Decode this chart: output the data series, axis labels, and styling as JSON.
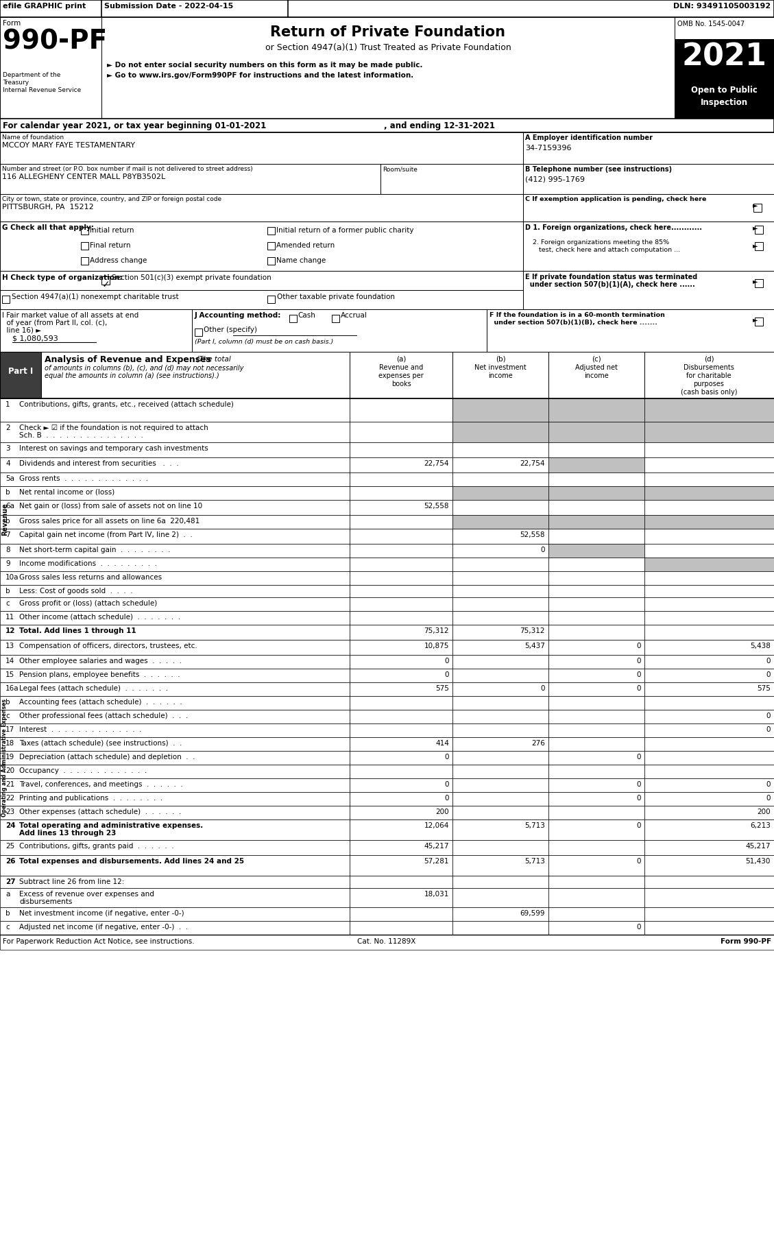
{
  "header_bar": {
    "efile": "efile GRAPHIC print",
    "submission": "Submission Date - 2022-04-15",
    "dln": "DLN: 93491105003192"
  },
  "form_number": "990-PF",
  "form_label": "Form",
  "dept1": "Department of the",
  "dept2": "Treasury",
  "dept3": "Internal Revenue Service",
  "title": "Return of Private Foundation",
  "subtitle": "or Section 4947(a)(1) Trust Treated as Private Foundation",
  "bullet1": "► Do not enter social security numbers on this form as it may be made public.",
  "bullet2": "► Go to www.irs.gov/Form990PF for instructions and the latest information.",
  "year": "2021",
  "open_public": "Open to Public",
  "inspection": "Inspection",
  "omb": "OMB No. 1545-0047",
  "cal_year": "For calendar year 2021, or tax year beginning 01-01-2021",
  "and_ending": ", and ending 12-31-2021",
  "name_label": "Name of foundation",
  "name_value": "MCCOY MARY FAYE TESTAMENTARY",
  "ein_label": "A Employer identification number",
  "ein_value": "34-7159396",
  "address_label": "Number and street (or P.O. box number if mail is not delivered to street address)",
  "address_value": "116 ALLEGHENY CENTER MALL P8YB3502L",
  "room_label": "Room/suite",
  "phone_label": "B Telephone number (see instructions)",
  "phone_value": "(412) 995-1769",
  "city_label": "City or town, state or province, country, and ZIP or foreign postal code",
  "city_value": "PITTSBURGH, PA  15212",
  "c_label": "C If exemption application is pending, check here",
  "g_options": [
    [
      "Initial return",
      "Initial return of a former public charity"
    ],
    [
      "Final return",
      "Amended return"
    ],
    [
      "Address change",
      "Name change"
    ]
  ],
  "i_value": "$ 1,080,593",
  "col_a": "Revenue and\nexpenses per\nbooks",
  "col_b": "Net investment\nincome",
  "col_c": "Adjusted net\nincome",
  "col_d": "Disbursements\nfor charitable\npurposes\n(cash basis only)",
  "rows": [
    {
      "num": "1",
      "label": "Contributions, gifts, grants, etc., received (attach schedule)",
      "a": "",
      "b": "",
      "c": "",
      "d": "",
      "shade_b": true,
      "shade_c": true,
      "shade_d": true,
      "rh": 34
    },
    {
      "num": "2",
      "label": "Check ► ☑ if the foundation is not required to attach\nSch. B  .  .  .  .  .  .  .  .  .  .  .  .  .  .  .",
      "a": "",
      "b": "",
      "c": "",
      "d": "",
      "shade_b": true,
      "shade_c": true,
      "shade_d": true,
      "rh": 30
    },
    {
      "num": "3",
      "label": "Interest on savings and temporary cash investments",
      "a": "",
      "b": "",
      "c": "",
      "d": "",
      "rh": 22
    },
    {
      "num": "4",
      "label": "Dividends and interest from securities   .  .  .",
      "a": "22,754",
      "b": "22,754",
      "c": "",
      "d": "",
      "shade_c": true,
      "rh": 22
    },
    {
      "num": "5a",
      "label": "Gross rents  .  .  .  .  .  .  .  .  .  .  .  .  .",
      "a": "",
      "b": "",
      "c": "",
      "d": "",
      "rh": 20
    },
    {
      "num": "b",
      "label": "Net rental income or (loss)",
      "a": "",
      "b": "",
      "c": "",
      "d": "",
      "shade_b": true,
      "shade_c": true,
      "shade_d": true,
      "rh": 20
    },
    {
      "num": "6a",
      "label": "Net gain or (loss) from sale of assets not on line 10",
      "a": "52,558",
      "b": "",
      "c": "",
      "d": "",
      "rh": 22
    },
    {
      "num": "b",
      "label": "Gross sales price for all assets on line 6a  220,481",
      "a": "",
      "b": "",
      "c": "",
      "d": "",
      "shade_b": true,
      "shade_c": true,
      "shade_d": true,
      "rh": 20
    },
    {
      "num": "7",
      "label": "Capital gain net income (from Part IV, line 2)  .  .",
      "a": "",
      "b": "52,558",
      "c": "",
      "d": "",
      "rh": 22
    },
    {
      "num": "8",
      "label": "Net short-term capital gain  .  .  .  .  .  .  .  .",
      "a": "",
      "b": "0",
      "c": "",
      "d": "",
      "shade_c": true,
      "rh": 20
    },
    {
      "num": "9",
      "label": "Income modifications  .  .  .  .  .  .  .  .  .",
      "a": "",
      "b": "",
      "c": "",
      "d": "",
      "shade_d": true,
      "rh": 20
    },
    {
      "num": "10a",
      "label": "Gross sales less returns and allowances",
      "a": "",
      "b": "",
      "c": "",
      "d": "",
      "rh": 20
    },
    {
      "num": "b",
      "label": "Less: Cost of goods sold  .  .  .  .",
      "a": "",
      "b": "",
      "c": "",
      "d": "",
      "rh": 18
    },
    {
      "num": "c",
      "label": "Gross profit or (loss) (attach schedule)",
      "a": "",
      "b": "",
      "c": "",
      "d": "",
      "rh": 20
    },
    {
      "num": "11",
      "label": "Other income (attach schedule)  .  .  .  .  .  .  .",
      "a": "",
      "b": "",
      "c": "",
      "d": "",
      "rh": 20
    },
    {
      "num": "12",
      "label": "Total. Add lines 1 through 11",
      "a": "75,312",
      "b": "75,312",
      "c": "",
      "d": "",
      "bold": true,
      "rh": 22
    },
    {
      "num": "13",
      "label": "Compensation of officers, directors, trustees, etc.",
      "a": "10,875",
      "b": "5,437",
      "c": "0",
      "d": "5,438",
      "rh": 22
    },
    {
      "num": "14",
      "label": "Other employee salaries and wages  .  .  .  .  .",
      "a": "0",
      "b": "",
      "c": "0",
      "d": "0",
      "rh": 20
    },
    {
      "num": "15",
      "label": "Pension plans, employee benefits  .  .  .  .  .  .",
      "a": "0",
      "b": "",
      "c": "0",
      "d": "0",
      "rh": 20
    },
    {
      "num": "16a",
      "label": "Legal fees (attach schedule)  .  .  .  .  .  .  .",
      "a": "575",
      "b": "0",
      "c": "0",
      "d": "575",
      "rh": 20
    },
    {
      "num": "b",
      "label": "Accounting fees (attach schedule)  .  .  .  .  .  .",
      "a": "",
      "b": "",
      "c": "",
      "d": "",
      "rh": 20
    },
    {
      "num": "c",
      "label": "Other professional fees (attach schedule)  .  .  .",
      "a": "",
      "b": "",
      "c": "",
      "d": "0",
      "rh": 20
    },
    {
      "num": "17",
      "label": "Interest  .  .  .  .  .  .  .  .  .  .  .  .  .  .",
      "a": "",
      "b": "",
      "c": "",
      "d": "0",
      "rh": 20
    },
    {
      "num": "18",
      "label": "Taxes (attach schedule) (see instructions)  .  .",
      "a": "414",
      "b": "276",
      "c": "",
      "d": "",
      "rh": 20
    },
    {
      "num": "19",
      "label": "Depreciation (attach schedule) and depletion  .  .",
      "a": "0",
      "b": "",
      "c": "0",
      "d": "",
      "rh": 20
    },
    {
      "num": "20",
      "label": "Occupancy  .  .  .  .  .  .  .  .  .  .  .  .  .",
      "a": "",
      "b": "",
      "c": "",
      "d": "",
      "rh": 20
    },
    {
      "num": "21",
      "label": "Travel, conferences, and meetings  .  .  .  .  .  .",
      "a": "0",
      "b": "",
      "c": "0",
      "d": "0",
      "rh": 20
    },
    {
      "num": "22",
      "label": "Printing and publications  .  .  .  .  .  .  .  .",
      "a": "0",
      "b": "",
      "c": "0",
      "d": "0",
      "rh": 20
    },
    {
      "num": "23",
      "label": "Other expenses (attach schedule)  .  .  .  .  .  .",
      "a": "200",
      "b": "",
      "c": "",
      "d": "200",
      "rh": 20
    },
    {
      "num": "24",
      "label": "Total operating and administrative expenses.\nAdd lines 13 through 23",
      "a": "12,064",
      "b": "5,713",
      "c": "0",
      "d": "6,213",
      "bold": true,
      "rh": 30
    },
    {
      "num": "25",
      "label": "Contributions, gifts, grants paid  .  .  .  .  .  .",
      "a": "45,217",
      "b": "",
      "c": "",
      "d": "45,217",
      "rh": 22
    },
    {
      "num": "26",
      "label": "Total expenses and disbursements. Add lines 24 and 25",
      "a": "57,281",
      "b": "5,713",
      "c": "0",
      "d": "51,430",
      "bold": true,
      "rh": 30
    },
    {
      "num": "27",
      "label": "Subtract line 26 from line 12:",
      "a": "",
      "b": "",
      "c": "",
      "d": "",
      "bold": true,
      "header_only": true,
      "rh": 18
    },
    {
      "num": "a",
      "label": "Excess of revenue over expenses and\ndisbursements",
      "a": "18,031",
      "b": "",
      "c": "",
      "d": "",
      "rh": 28
    },
    {
      "num": "b",
      "label": "Net investment income (if negative, enter -0-)",
      "a": "",
      "b": "69,599",
      "c": "",
      "d": "",
      "rh": 20
    },
    {
      "num": "c",
      "label": "Adjusted net income (if negative, enter -0-)  .  .",
      "a": "",
      "b": "",
      "c": "0",
      "d": "",
      "rh": 20
    }
  ],
  "footer1": "For Paperwork Reduction Act Notice, see instructions.",
  "footer2": "Cat. No. 11289X",
  "footer3": "Form 990-PF"
}
